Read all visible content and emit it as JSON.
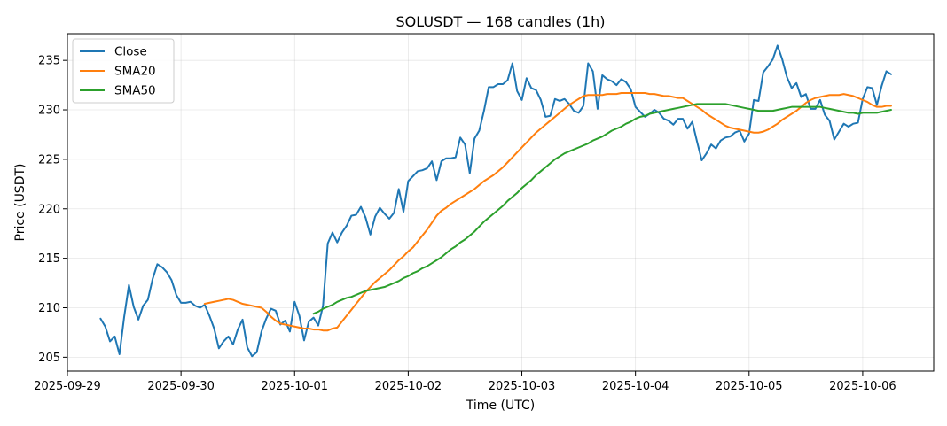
{
  "chart_data": {
    "type": "line",
    "title": "SOLUSDT — 168 candles (1h)",
    "xlabel": "Time (UTC)",
    "ylabel": "Price (USDT)",
    "x_start": "2025-09-29 07:00",
    "x_step_hours": 1,
    "xlim": [
      "2025-09-29 00:00",
      "2025-10-06 15:00"
    ],
    "ylim": [
      203.6,
      237.7
    ],
    "x_ticks": [
      "2025-09-29",
      "2025-09-30",
      "2025-10-01",
      "2025-10-02",
      "2025-10-03",
      "2025-10-04",
      "2025-10-05",
      "2025-10-06"
    ],
    "y_ticks": [
      205,
      210,
      215,
      220,
      225,
      230,
      235
    ],
    "grid": true,
    "legend_position": "upper-left",
    "series": [
      {
        "name": "Close",
        "color": "#1f77b4",
        "values": [
          208.9,
          208.1,
          206.6,
          207.1,
          205.3,
          209.1,
          212.3,
          210.1,
          208.8,
          210.2,
          210.8,
          212.9,
          214.4,
          214.1,
          213.6,
          212.8,
          211.3,
          210.5,
          210.5,
          210.6,
          210.2,
          210.0,
          210.3,
          209.2,
          207.9,
          205.9,
          206.6,
          207.1,
          206.3,
          207.8,
          208.8,
          206.0,
          205.1,
          205.5,
          207.6,
          208.9,
          209.9,
          209.7,
          208.3,
          208.7,
          207.6,
          210.6,
          209.2,
          206.7,
          208.6,
          209.0,
          208.2,
          210.2,
          216.5,
          217.6,
          216.6,
          217.6,
          218.3,
          219.3,
          219.4,
          220.2,
          219.1,
          217.4,
          219.2,
          220.1,
          219.5,
          219.0,
          219.6,
          222.0,
          219.7,
          222.8,
          223.3,
          223.8,
          223.9,
          224.1,
          224.8,
          222.9,
          224.8,
          225.1,
          225.1,
          225.2,
          227.2,
          226.5,
          223.6,
          227.1,
          227.9,
          229.9,
          232.3,
          232.3,
          232.6,
          232.6,
          233.0,
          234.7,
          231.9,
          231.0,
          233.2,
          232.2,
          232.0,
          231.0,
          229.3,
          229.4,
          231.1,
          230.9,
          231.1,
          230.6,
          229.9,
          229.7,
          230.4,
          234.7,
          233.9,
          230.1,
          233.5,
          233.1,
          232.9,
          232.5,
          233.1,
          232.8,
          232.1,
          230.3,
          229.8,
          229.3,
          229.6,
          230.0,
          229.7,
          229.1,
          228.9,
          228.5,
          229.1,
          229.1,
          228.1,
          228.8,
          226.8,
          224.9,
          225.6,
          226.5,
          226.1,
          226.9,
          227.2,
          227.3,
          227.7,
          227.9,
          226.8,
          227.6,
          231.0,
          230.9,
          233.8,
          234.4,
          235.1,
          236.5,
          235.1,
          233.3,
          232.2,
          232.7,
          231.3,
          231.6,
          230.1,
          230.1,
          231.0,
          229.5,
          228.9,
          227.0,
          227.8,
          228.6,
          228.3,
          228.6,
          228.7,
          231.1,
          232.3,
          232.2,
          230.5,
          232.4,
          233.9,
          233.6
        ]
      },
      {
        "name": "SMA20",
        "color": "#ff7f0e",
        "values": [
          210.4,
          210.5,
          210.6,
          210.7,
          210.8,
          210.9,
          210.8,
          210.6,
          210.4,
          210.3,
          210.2,
          210.1,
          210.0,
          209.6,
          209.1,
          208.7,
          208.4,
          208.3,
          208.2,
          208.1,
          208.0,
          207.9,
          207.9,
          207.8,
          207.8,
          207.7,
          207.7,
          207.9,
          208.0,
          208.6,
          209.2,
          209.8,
          210.4,
          211.0,
          211.6,
          212.1,
          212.6,
          213.0,
          213.4,
          213.8,
          214.3,
          214.8,
          215.2,
          215.7,
          216.1,
          216.7,
          217.3,
          217.9,
          218.6,
          219.3,
          219.8,
          220.1,
          220.5,
          220.8,
          221.1,
          221.4,
          221.7,
          222.0,
          222.4,
          222.8,
          223.1,
          223.4,
          223.8,
          224.2,
          224.7,
          225.2,
          225.7,
          226.2,
          226.7,
          227.2,
          227.7,
          228.1,
          228.5,
          228.9,
          229.3,
          229.7,
          230.1,
          230.5,
          230.8,
          231.1,
          231.4,
          231.5,
          231.5,
          231.5,
          231.5,
          231.6,
          231.6,
          231.6,
          231.7,
          231.7,
          231.7,
          231.7,
          231.7,
          231.7,
          231.6,
          231.6,
          231.5,
          231.4,
          231.4,
          231.3,
          231.2,
          231.2,
          230.9,
          230.6,
          230.3,
          230.0,
          229.6,
          229.3,
          229.0,
          228.7,
          228.4,
          228.2,
          228.1,
          228.0,
          227.9,
          227.8,
          227.7,
          227.7,
          227.8,
          228.0,
          228.3,
          228.6,
          229.0,
          229.3,
          229.6,
          229.9,
          230.3,
          230.7,
          231.0,
          231.2,
          231.3,
          231.4,
          231.5,
          231.5,
          231.5,
          231.6,
          231.5,
          231.4,
          231.2,
          231.0,
          230.8,
          230.5,
          230.3,
          230.3,
          230.4,
          230.4
        ]
      },
      {
        "name": "SMA50",
        "color": "#2ca02c",
        "values": [
          209.4,
          209.6,
          209.9,
          210.1,
          210.3,
          210.6,
          210.8,
          211.0,
          211.1,
          211.3,
          211.5,
          211.7,
          211.8,
          211.9,
          212.0,
          212.1,
          212.3,
          212.5,
          212.7,
          213.0,
          213.2,
          213.5,
          213.7,
          214.0,
          214.2,
          214.5,
          214.8,
          215.1,
          215.5,
          215.9,
          216.2,
          216.6,
          216.9,
          217.3,
          217.7,
          218.2,
          218.7,
          219.1,
          219.5,
          219.9,
          220.3,
          220.8,
          221.2,
          221.6,
          222.1,
          222.5,
          222.9,
          223.4,
          223.8,
          224.2,
          224.6,
          225.0,
          225.3,
          225.6,
          225.8,
          226.0,
          226.2,
          226.4,
          226.6,
          226.9,
          227.1,
          227.3,
          227.6,
          227.9,
          228.1,
          228.3,
          228.6,
          228.8,
          229.1,
          229.3,
          229.4,
          229.6,
          229.7,
          229.8,
          229.9,
          230.0,
          230.1,
          230.2,
          230.3,
          230.4,
          230.5,
          230.6,
          230.6,
          230.6,
          230.6,
          230.6,
          230.6,
          230.6,
          230.5,
          230.4,
          230.3,
          230.2,
          230.1,
          230.0,
          229.9,
          229.9,
          229.9,
          229.9,
          230.0,
          230.1,
          230.2,
          230.3,
          230.3,
          230.3,
          230.3,
          230.3,
          230.3,
          230.3,
          230.2,
          230.1,
          230.0,
          229.9,
          229.8,
          229.7,
          229.7,
          229.6,
          229.7,
          229.7,
          229.7,
          229.7,
          229.8,
          229.9,
          230.0
        ]
      }
    ]
  }
}
